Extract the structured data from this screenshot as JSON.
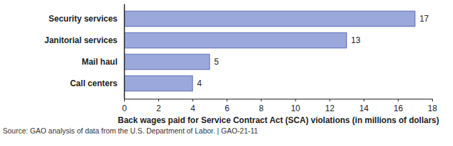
{
  "chart_data": {
    "type": "bar",
    "orientation": "horizontal",
    "categories": [
      "Security services",
      "Janitorial services",
      "Mail haul",
      "Call centers"
    ],
    "values": [
      17,
      13,
      5,
      4
    ],
    "color": "#9ba8dc",
    "xlabel": "Back wages paid for Service Contract Act (SCA) violations (in millions of dollars)",
    "xlim": [
      0,
      18
    ],
    "xticks": [
      0,
      2,
      4,
      6,
      8,
      10,
      12,
      14,
      16,
      18
    ],
    "grid": false,
    "data_labels": true,
    "caption": "Source: GAO analysis of data from the U.S. Department of Labor.  |  GAO-21-11"
  }
}
